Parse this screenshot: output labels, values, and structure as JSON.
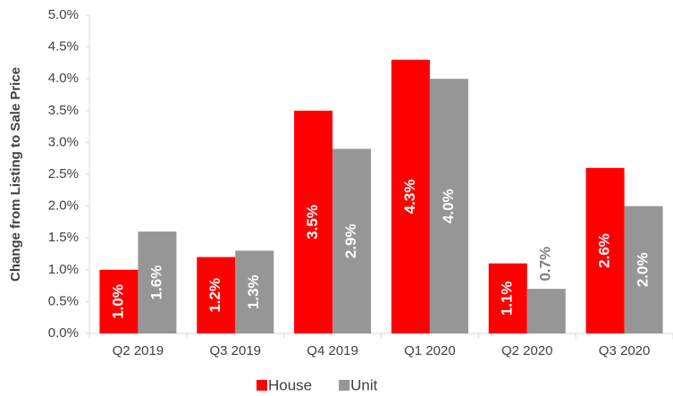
{
  "chart_data": {
    "type": "bar",
    "y_label": "Change from Listing to Sale Price",
    "categories": [
      "Q2 2019",
      "Q3 2019",
      "Q4 2019",
      "Q1 2020",
      "Q2 2020",
      "Q3 2020"
    ],
    "series": [
      {
        "name": "House",
        "color": "#ff0000",
        "values": [
          1.0,
          1.2,
          3.5,
          4.3,
          1.1,
          2.6
        ],
        "value_labels": [
          "1.0%",
          "1.2%",
          "3.5%",
          "4.3%",
          "1.1%",
          "2.6%"
        ]
      },
      {
        "name": "Unit",
        "color": "#969696",
        "values": [
          1.6,
          1.3,
          2.9,
          4.0,
          0.7,
          2.0
        ],
        "value_labels": [
          "1.6%",
          "1.3%",
          "2.9%",
          "4.0%",
          "0.7%",
          "2.0%"
        ]
      }
    ],
    "ylim": [
      0,
      5
    ],
    "yticks": [
      {
        "value": 0,
        "label": "0.0%"
      },
      {
        "value": 0.5,
        "label": "0.5%"
      },
      {
        "value": 1,
        "label": "1.0%"
      },
      {
        "value": 1.5,
        "label": "1.5%"
      },
      {
        "value": 2,
        "label": "2.0%"
      },
      {
        "value": 2.5,
        "label": "2.5%"
      },
      {
        "value": 3,
        "label": "3.0%"
      },
      {
        "value": 3.5,
        "label": "3.5%"
      },
      {
        "value": 4,
        "label": "4.0%"
      },
      {
        "value": 4.5,
        "label": "4.5%"
      },
      {
        "value": 5,
        "label": "5.0%"
      }
    ],
    "grid": false,
    "legend": "bottom"
  }
}
